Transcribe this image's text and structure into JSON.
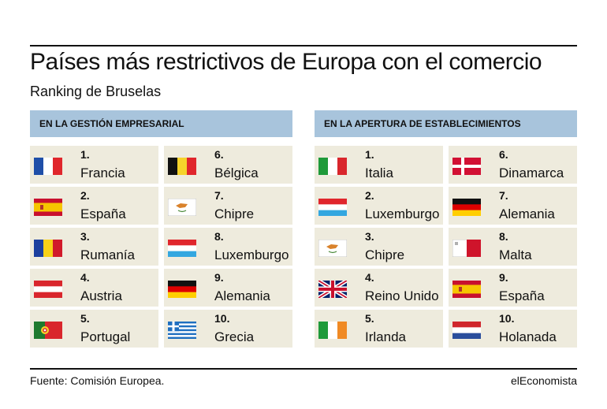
{
  "chart_data": {
    "type": "table",
    "title": "Países más restrictivos de Europa con el comercio",
    "subtitle": "Ranking de Bruselas",
    "sections": [
      {
        "header": "EN LA GESTIÓN EMPRESARIAL",
        "items": [
          {
            "rank": "1.",
            "country": "Francia",
            "flag": "france-flag"
          },
          {
            "rank": "2.",
            "country": "España",
            "flag": "spain-flag"
          },
          {
            "rank": "3.",
            "country": "Rumanía",
            "flag": "romania-flag"
          },
          {
            "rank": "4.",
            "country": "Austria",
            "flag": "austria-flag"
          },
          {
            "rank": "5.",
            "country": "Portugal",
            "flag": "portugal-flag"
          },
          {
            "rank": "6.",
            "country": "Bélgica",
            "flag": "belgium-flag"
          },
          {
            "rank": "7.",
            "country": "Chipre",
            "flag": "cyprus-flag"
          },
          {
            "rank": "8.",
            "country": "Luxemburgo",
            "flag": "luxembourg-flag"
          },
          {
            "rank": "9.",
            "country": "Alemania",
            "flag": "germany-flag"
          },
          {
            "rank": "10.",
            "country": "Grecia",
            "flag": "greece-flag"
          }
        ]
      },
      {
        "header": "EN LA APERTURA DE ESTABLECIMIENTOS",
        "items": [
          {
            "rank": "1.",
            "country": "Italia",
            "flag": "italy-flag"
          },
          {
            "rank": "2.",
            "country": "Luxemburgo",
            "flag": "luxembourg-flag"
          },
          {
            "rank": "3.",
            "country": "Chipre",
            "flag": "cyprus-flag"
          },
          {
            "rank": "4.",
            "country": "Reino Unido",
            "flag": "uk-flag"
          },
          {
            "rank": "5.",
            "country": "Irlanda",
            "flag": "ireland-flag"
          },
          {
            "rank": "6.",
            "country": "Dinamarca",
            "flag": "denmark-flag"
          },
          {
            "rank": "7.",
            "country": "Alemania",
            "flag": "germany-flag"
          },
          {
            "rank": "8.",
            "country": "Malta",
            "flag": "malta-flag"
          },
          {
            "rank": "9.",
            "country": "España",
            "flag": "spain-flag"
          },
          {
            "rank": "10.",
            "country": "Holanada",
            "flag": "netherlands-flag"
          }
        ]
      }
    ]
  },
  "footer": {
    "source": "Fuente: Comisión Europea.",
    "brand": "elEconomista"
  },
  "colors": {
    "header_bg": "#a8c4dc",
    "cell_bg": "#eeebdd"
  }
}
